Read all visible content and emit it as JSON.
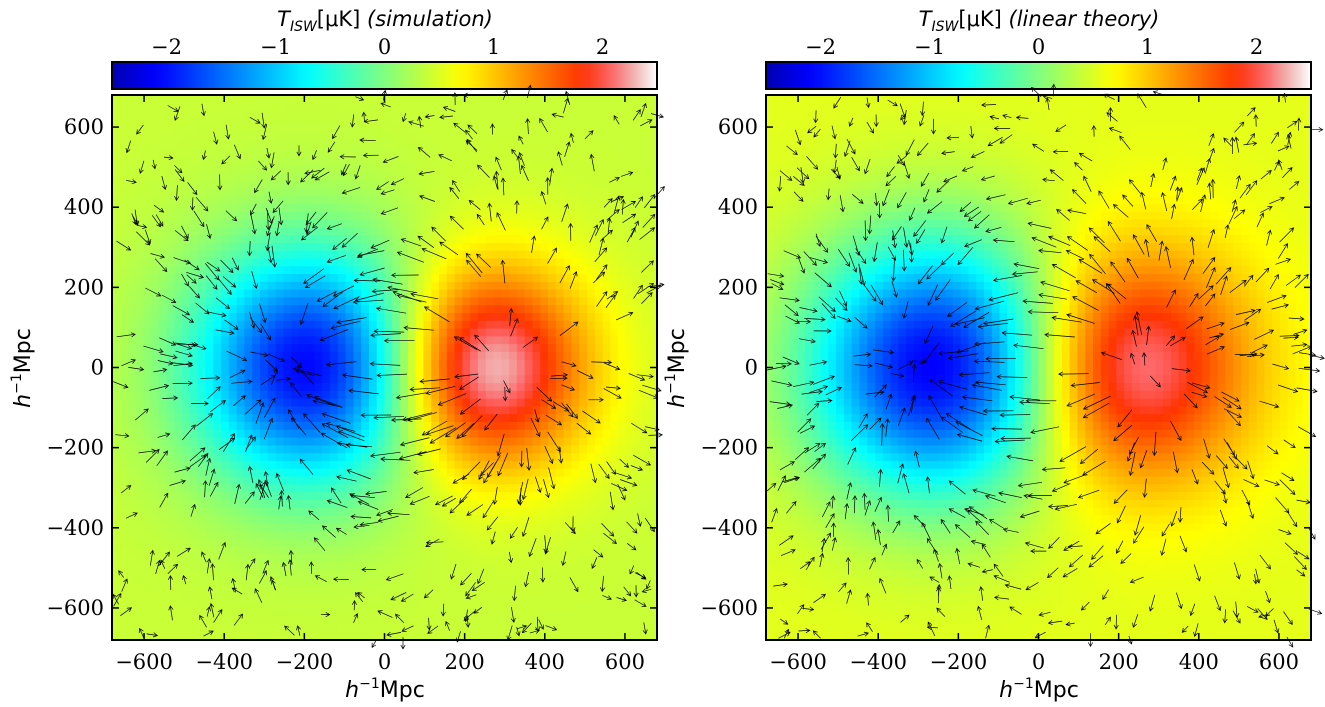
{
  "chart_data": [
    {
      "type": "heatmap",
      "colormap": "jet",
      "overlay": "quiver",
      "colorbar": {
        "title": "T_ISW[μK] (simulation)",
        "title_symbol": "T",
        "title_subscript": "ISW",
        "title_units": "[μK]",
        "title_note": "(simulation)",
        "range": [
          -2.5,
          2.5
        ],
        "ticks": [
          -2,
          -1,
          0,
          1,
          2
        ],
        "tick_labels": [
          "−2",
          "−1",
          "0",
          "1",
          "2"
        ],
        "position": "top"
      },
      "xlabel": "h⁻¹Mpc",
      "ylabel": "h⁻¹Mpc",
      "xlim": [
        -680,
        680
      ],
      "ylim": [
        -680,
        680
      ],
      "xticks": [
        -600,
        -400,
        -200,
        0,
        200,
        400,
        600
      ],
      "yticks": [
        -600,
        -400,
        -200,
        0,
        200,
        400,
        600
      ],
      "xtick_labels": [
        "−600",
        "−400",
        "−200",
        "0",
        "200",
        "400",
        "600"
      ],
      "ytick_labels": [
        "−600",
        "−400",
        "−200",
        "0",
        "200",
        "400",
        "600"
      ],
      "field": [
        {
          "kind": "cold_spot",
          "center": [
            -180,
            0
          ],
          "peak": -2.3,
          "radius": 300
        },
        {
          "kind": "hot_spot",
          "center": [
            250,
            0
          ],
          "peak": 2.5,
          "radius": 260
        }
      ],
      "background_value": 0.4,
      "grid": false
    },
    {
      "type": "heatmap",
      "colormap": "jet",
      "overlay": "quiver",
      "colorbar": {
        "title": "T_ISW[μK] (linear theory)",
        "title_symbol": "T",
        "title_subscript": "ISW",
        "title_units": "[μK]",
        "title_note": "(linear theory)",
        "range": [
          -2.5,
          2.5
        ],
        "ticks": [
          -2,
          -1,
          0,
          1,
          2
        ],
        "tick_labels": [
          "−2",
          "−1",
          "0",
          "1",
          "2"
        ],
        "position": "top"
      },
      "xlabel": "h⁻¹Mpc",
      "ylabel": "h⁻¹Mpc",
      "xlim": [
        -680,
        680
      ],
      "ylim": [
        -680,
        680
      ],
      "xticks": [
        -600,
        -400,
        -200,
        0,
        200,
        400,
        600
      ],
      "yticks": [
        -600,
        -400,
        -200,
        0,
        200,
        400,
        600
      ],
      "xtick_labels": [
        "−600",
        "−400",
        "−200",
        "0",
        "200",
        "400",
        "600"
      ],
      "ytick_labels": [
        "−600",
        "−400",
        "−200",
        "0",
        "200",
        "400",
        "600"
      ],
      "field": [
        {
          "kind": "cold_spot",
          "center": [
            -250,
            0
          ],
          "peak": -2.4,
          "radius": 330
        },
        {
          "kind": "hot_spot",
          "center": [
            230,
            0
          ],
          "peak": 2.3,
          "radius": 300
        }
      ],
      "background_value": 0.55,
      "grid": false
    }
  ]
}
